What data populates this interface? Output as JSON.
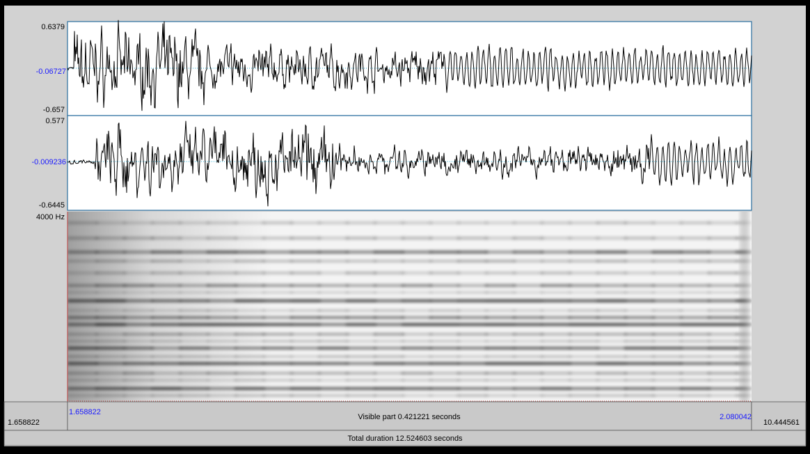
{
  "channel_1": {
    "max": "0.6379",
    "mid": "-0.06727",
    "min": "-0.657"
  },
  "channel_2": {
    "max": "0.577",
    "mid": "-0.009236",
    "min": "-0.6445"
  },
  "spectrogram": {
    "top_label": "4000 Hz"
  },
  "time_bar": {
    "left_outside": "1.658822",
    "visible_start": "1.658822",
    "visible_label": "Visible part 0.421221 seconds",
    "visible_end": "2.080042",
    "right_outside": "10.444561"
  },
  "total_label": "Total duration 12.524603 seconds"
}
